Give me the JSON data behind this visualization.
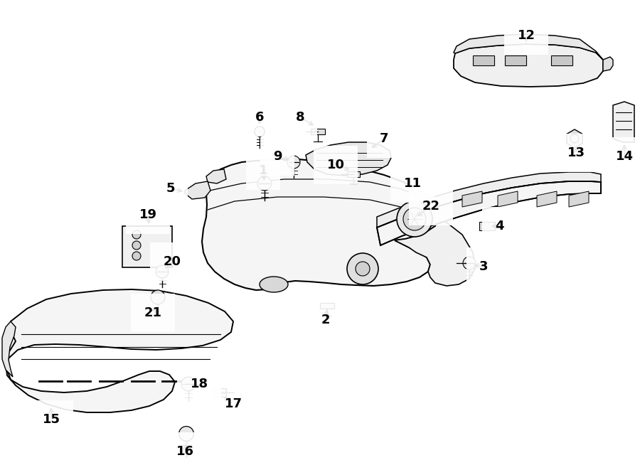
{
  "bg_color": "#ffffff",
  "fig_width": 9.0,
  "fig_height": 6.61,
  "dpi": 100
}
